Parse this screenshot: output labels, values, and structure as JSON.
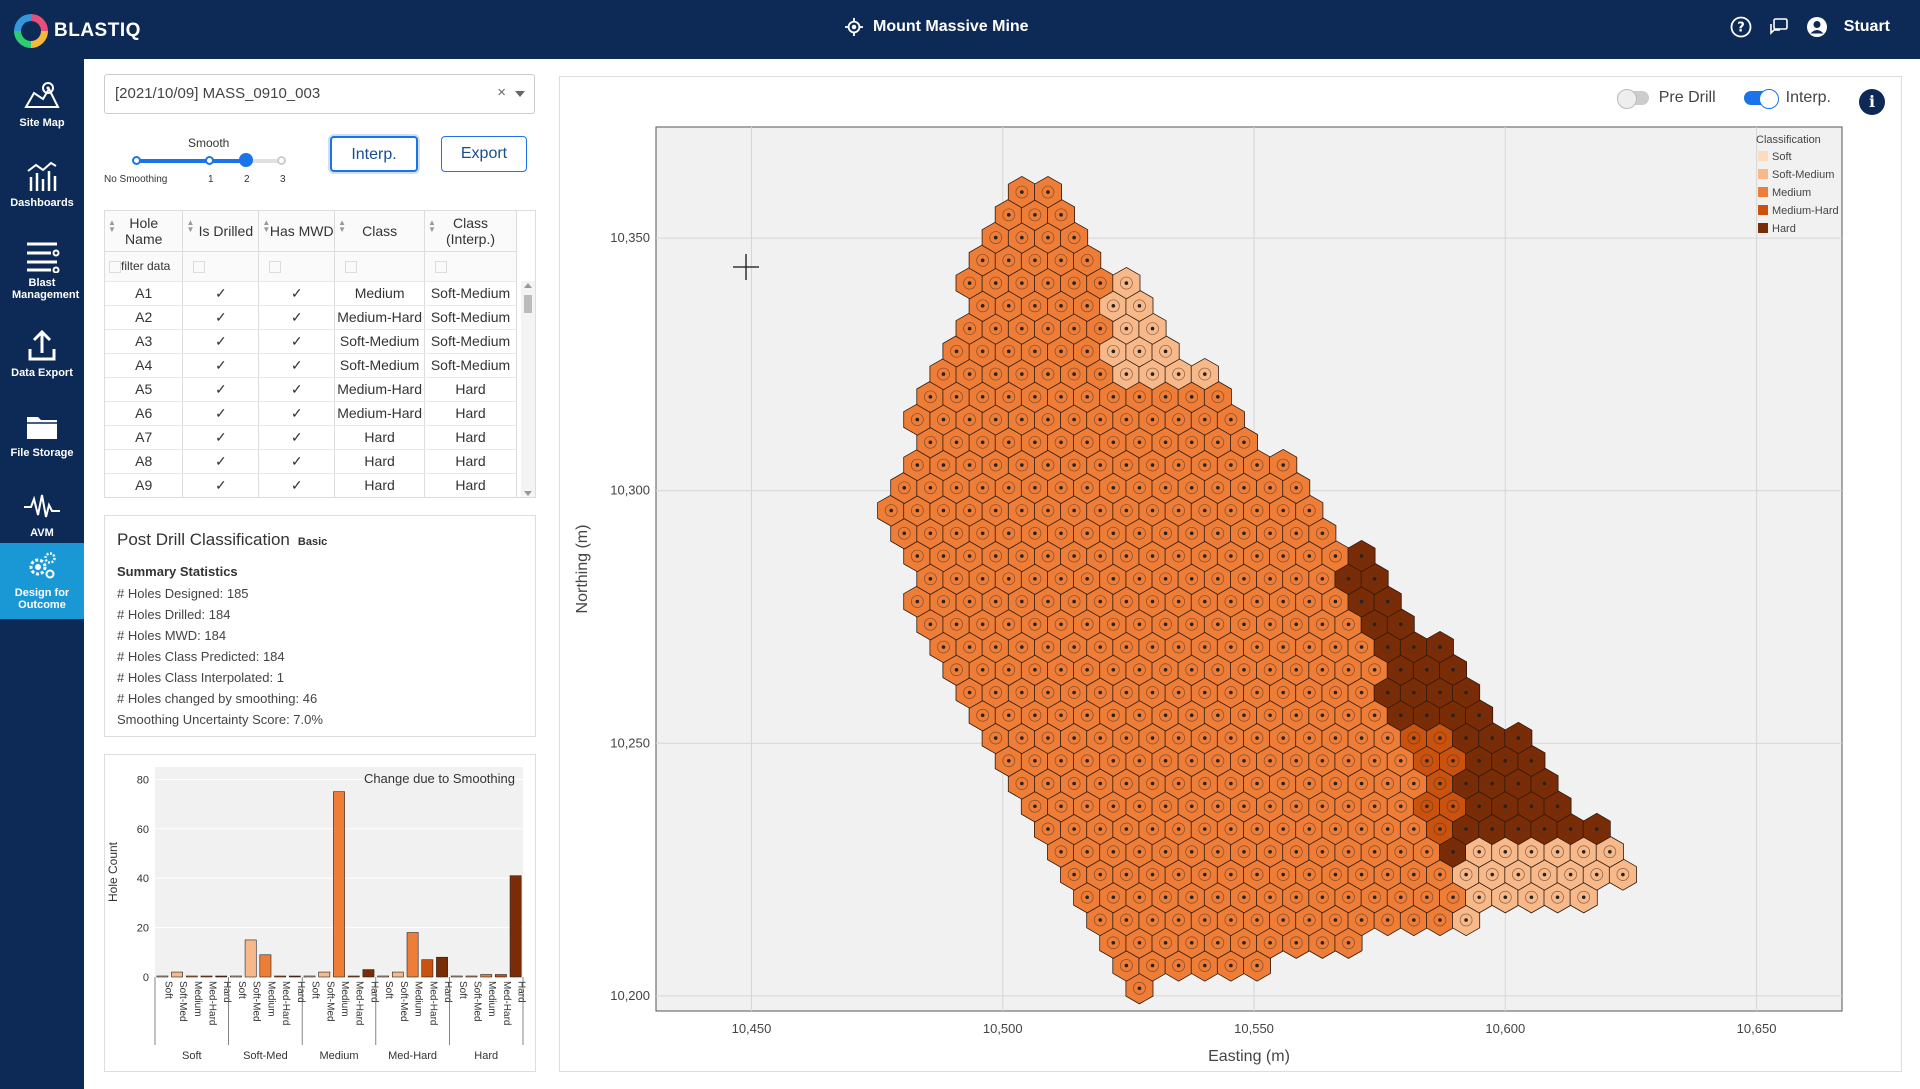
{
  "app": {
    "logo": "BLASTIQ",
    "site": "Mount Massive Mine",
    "user": "Stuart"
  },
  "sidebar": {
    "items": [
      {
        "label": "Site Map",
        "icon": "map-icon"
      },
      {
        "label": "Dashboards",
        "icon": "dashboard-icon"
      },
      {
        "label": "Blast Management",
        "icon": "blast-icon"
      },
      {
        "label": "Data Export",
        "icon": "upload-icon"
      },
      {
        "label": "File Storage",
        "icon": "folder-icon"
      },
      {
        "label": "AVM",
        "icon": "waveform-icon"
      },
      {
        "label": "Design for Outcome",
        "icon": "gears-icon",
        "active": true
      }
    ]
  },
  "dataset": {
    "value": "[2021/10/09] MASS_0910_003",
    "clear": "×"
  },
  "smooth": {
    "label": "Smooth",
    "ticks": [
      "No Smoothing",
      "1",
      "2",
      "3"
    ],
    "value": 2
  },
  "buttons": {
    "interp": "Interp.",
    "export": "Export"
  },
  "table": {
    "headers": [
      "Hole Name",
      "Is Drilled",
      "Has MWD",
      "Class",
      "Class (Interp.)"
    ],
    "filter_placeholder": "filter data",
    "rows": [
      [
        "A1",
        "✓",
        "✓",
        "Medium",
        "Soft-Medium"
      ],
      [
        "A2",
        "✓",
        "✓",
        "Medium-Hard",
        "Soft-Medium"
      ],
      [
        "A3",
        "✓",
        "✓",
        "Soft-Medium",
        "Soft-Medium"
      ],
      [
        "A4",
        "✓",
        "✓",
        "Soft-Medium",
        "Soft-Medium"
      ],
      [
        "A5",
        "✓",
        "✓",
        "Medium-Hard",
        "Hard"
      ],
      [
        "A6",
        "✓",
        "✓",
        "Medium-Hard",
        "Hard"
      ],
      [
        "A7",
        "✓",
        "✓",
        "Hard",
        "Hard"
      ],
      [
        "A8",
        "✓",
        "✓",
        "Hard",
        "Hard"
      ],
      [
        "A9",
        "✓",
        "✓",
        "Hard",
        "Hard"
      ]
    ]
  },
  "classification": {
    "title": "Post Drill Classification",
    "tag": "Basic",
    "subtitle": "Summary Statistics",
    "stats": [
      "# Holes Designed: 185",
      "# Holes Drilled: 184",
      "# Holes MWD: 184",
      "# Holes Class Predicted: 184",
      "# Holes Class Interpolated: 1",
      "# Holes changed by smoothing: 46",
      "Smoothing Uncertainty Score: 7.0%"
    ]
  },
  "toggles": {
    "pre_drill": "Pre Drill",
    "interp": "Interp."
  },
  "colors": {
    "Soft": "#fbdcbe",
    "Soft-Medium": "#f7b98a",
    "Medium": "#ee7d38",
    "Medium-Hard": "#c9520f",
    "Hard": "#7a2c06",
    "navy": "#0d2a57",
    "accent": "#1a98d5"
  },
  "chart_data": [
    {
      "type": "bar",
      "title": "Change due to Smoothing",
      "ylabel": "Hole Count",
      "ylim": [
        0,
        85
      ],
      "yticks": [
        0,
        20,
        40,
        60,
        80
      ],
      "groups": [
        "Soft",
        "Soft-Med",
        "Medium",
        "Med-Hard",
        "Hard"
      ],
      "categories": [
        "Soft",
        "Soft-Med",
        "Medium",
        "Med-Hard",
        "Hard"
      ],
      "values": [
        [
          0,
          2,
          0,
          0,
          0
        ],
        [
          0,
          15,
          9,
          0,
          0
        ],
        [
          0,
          2,
          75,
          0,
          3
        ],
        [
          0,
          2,
          18,
          7,
          8
        ],
        [
          0,
          0,
          1,
          1,
          41
        ]
      ]
    },
    {
      "type": "scatter",
      "xlabel": "Easting (m)",
      "ylabel": "Northing (m)",
      "xlim": [
        10431,
        10667
      ],
      "ylim": [
        10197,
        10372
      ],
      "xticks": [
        "10,450",
        "10,500",
        "10,550",
        "10,600",
        "10,650"
      ],
      "yticks": [
        "10,200",
        "10,250",
        "10,300",
        "10,350"
      ],
      "xtick_values": [
        10450,
        10500,
        10550,
        10600,
        10650
      ],
      "ytick_values": [
        10200,
        10250,
        10300,
        10350
      ],
      "legend_title": "Classification",
      "legend": [
        "Soft",
        "Soft-Medium",
        "Medium",
        "Medium-Hard",
        "Hard"
      ],
      "legend_position": "top-right",
      "region_vertices": [
        [
          10503,
          10367
        ],
        [
          10475,
          10293
        ],
        [
          10524,
          10200
        ],
        [
          10628,
          10222
        ]
      ],
      "grid_spacing": 5.2
    }
  ]
}
